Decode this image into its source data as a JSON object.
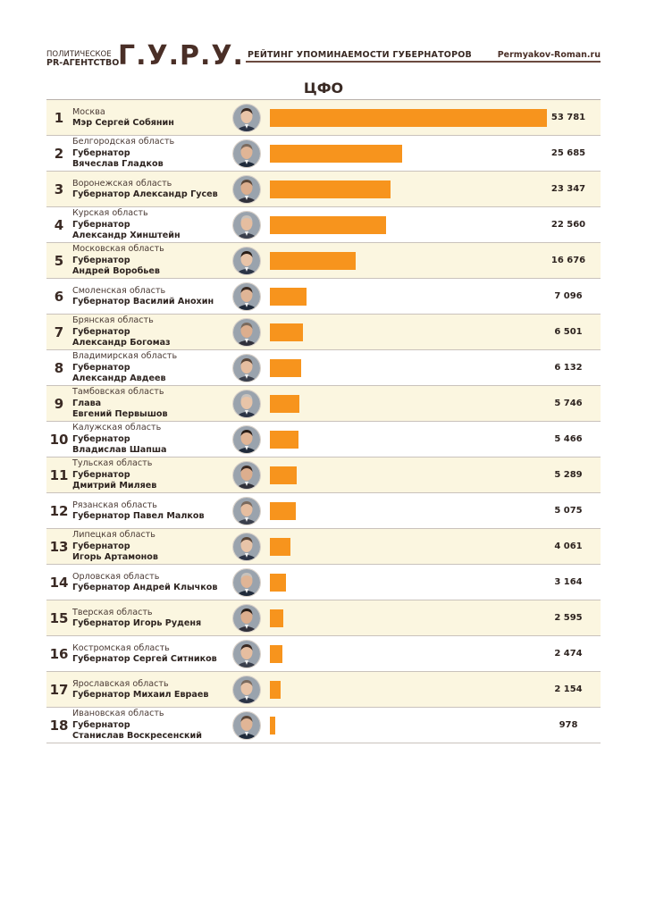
{
  "header": {
    "agency_line1": "ПОЛИТИЧЕСКОЕ",
    "agency_line2": "PR-АГЕНТСТВО",
    "logo": "Г.У.Р.У.",
    "title": "РЕЙТИНГ УПОМИНАЕМОСТИ ГУБЕРНАТОРОВ",
    "site": "Permyakov-Roman.ru"
  },
  "chart_data": {
    "type": "bar",
    "orientation": "horizontal",
    "title": "ЦФО",
    "xlim": [
      0,
      53781
    ],
    "bar_color": "#f7941d",
    "rows": [
      {
        "rank": "1",
        "region": "Москва",
        "lines": [
          "Мэр Сергей Собянин"
        ],
        "value": 53781,
        "label": "53 781"
      },
      {
        "rank": "2",
        "region": "Белгородская область",
        "lines": [
          "Губернатор",
          "Вячеслав Гладков"
        ],
        "value": 25685,
        "label": "25 685"
      },
      {
        "rank": "3",
        "region": "Воронежская область",
        "lines": [
          "Губернатор Александр Гусев"
        ],
        "value": 23347,
        "label": "23 347"
      },
      {
        "rank": "4",
        "region": "Курская область",
        "lines": [
          "Губернатор",
          "Александр Хинштейн"
        ],
        "value": 22560,
        "label": "22 560"
      },
      {
        "rank": "5",
        "region": "Московская область",
        "lines": [
          "Губернатор",
          "Андрей Воробьев"
        ],
        "value": 16676,
        "label": "16 676"
      },
      {
        "rank": "6",
        "region": "Смоленская область",
        "lines": [
          "Губернатор Василий Анохин"
        ],
        "value": 7096,
        "label": "7 096"
      },
      {
        "rank": "7",
        "region": "Брянская область",
        "lines": [
          "Губернатор",
          "Александр Богомаз"
        ],
        "value": 6501,
        "label": "6 501"
      },
      {
        "rank": "8",
        "region": "Владимирская область",
        "lines": [
          "Губернатор",
          "Александр Авдеев"
        ],
        "value": 6132,
        "label": "6 132"
      },
      {
        "rank": "9",
        "region": "Тамбовская область",
        "lines": [
          "Глава",
          "Евгений Первышов"
        ],
        "value": 5746,
        "label": "5 746"
      },
      {
        "rank": "10",
        "region": "Калужская область",
        "lines": [
          "Губернатор",
          "Владислав Шапша"
        ],
        "value": 5466,
        "label": "5 466"
      },
      {
        "rank": "11",
        "region": "Тульская область",
        "lines": [
          "Губернатор",
          "Дмитрий Миляев"
        ],
        "value": 5289,
        "label": "5 289"
      },
      {
        "rank": "12",
        "region": "Рязанская область",
        "lines": [
          "Губернатор Павел Малков"
        ],
        "value": 5075,
        "label": "5 075"
      },
      {
        "rank": "13",
        "region": "Липецкая область",
        "lines": [
          "Губернатор",
          "Игорь Артамонов"
        ],
        "value": 4061,
        "label": "4 061"
      },
      {
        "rank": "14",
        "region": "Орловская область",
        "lines": [
          "Губернатор Андрей Клычков"
        ],
        "value": 3164,
        "label": "3 164"
      },
      {
        "rank": "15",
        "region": "Тверская область",
        "lines": [
          "Губернатор Игорь Руденя"
        ],
        "value": 2595,
        "label": "2 595"
      },
      {
        "rank": "16",
        "region": "Костромская область",
        "lines": [
          "Губернатор Сергей Ситников"
        ],
        "value": 2474,
        "label": "2 474"
      },
      {
        "rank": "17",
        "region": "Ярославская область",
        "lines": [
          "Губернатор Михаил Евраев"
        ],
        "value": 2154,
        "label": "2 154"
      },
      {
        "rank": "18",
        "region": "Ивановская область",
        "lines": [
          "Губернатор",
          "Станислав Воскресенский"
        ],
        "value": 978,
        "label": "978"
      }
    ]
  }
}
